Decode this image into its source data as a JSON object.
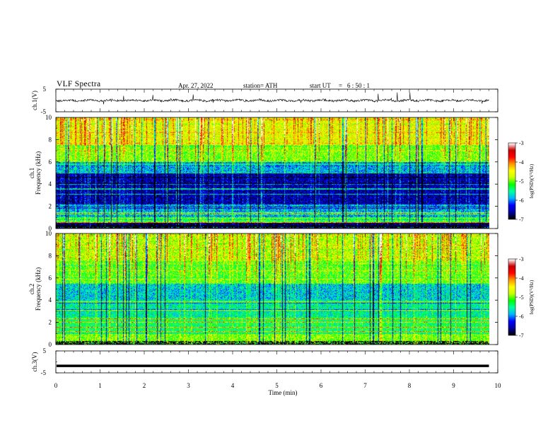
{
  "header": {
    "title": "VLF  Spectra",
    "date": "Apr. 27, 2022",
    "station": "station= ATH",
    "start_ut_label": "start  UT",
    "start_ut_equals": "=",
    "start_ut_value": "6  : 50 : 1"
  },
  "chart_data": [
    {
      "type": "line",
      "name": "ch1-waveform",
      "ylabel": "ch.1(V)",
      "ylim": [
        -5,
        5
      ],
      "yticklabels": [
        "5",
        "-5"
      ],
      "x_range": [
        0,
        10
      ],
      "x_data_extent": [
        0,
        9.8
      ],
      "baseline": 0,
      "trace": "noisy voltage trace around 0 V with frequent spikes"
    },
    {
      "type": "heatmap",
      "name": "ch1-spectrogram",
      "ylabel": "ch.1\nFrequency  (kHz)",
      "ylim": [
        0,
        10
      ],
      "yticks": [
        "0",
        "2",
        "4",
        "6",
        "8",
        "10"
      ],
      "x_range": [
        0,
        10
      ],
      "x_data_extent": [
        0,
        9.8
      ],
      "colorbar": {
        "label": "log(PSD)(V²/Hz)",
        "range": [
          -7,
          -3
        ],
        "ticks": [
          "-3",
          "-4",
          "-5",
          "-6",
          "-7"
        ],
        "colormap": [
          "#000000",
          "#0000a0",
          "#0000ff",
          "#00b4ff",
          "#00ffa0",
          "#00ff00",
          "#c8ff00",
          "#ffff00",
          "#ff9600",
          "#ff0000",
          "#c80000",
          "#ffffff"
        ]
      },
      "bands_log_psd": [
        {
          "from_khz": 0,
          "to_khz": 0.5,
          "level": -6.8
        },
        {
          "from_khz": 0.5,
          "to_khz": 1.0,
          "level": -5.2
        },
        {
          "from_khz": 1.0,
          "to_khz": 2.2,
          "level": -5.9
        },
        {
          "from_khz": 2.2,
          "to_khz": 5.0,
          "level": -6.6
        },
        {
          "from_khz": 5.0,
          "to_khz": 6.0,
          "level": -5.9
        },
        {
          "from_khz": 6.0,
          "to_khz": 7.5,
          "level": -5.0
        },
        {
          "from_khz": 7.5,
          "to_khz": 10,
          "level": -4.6
        }
      ]
    },
    {
      "type": "heatmap",
      "name": "ch2-spectrogram",
      "ylabel": "ch.2\nFrequency  (kHz)",
      "ylim": [
        0,
        10
      ],
      "yticks": [
        "0",
        "2",
        "4",
        "6",
        "8",
        "10"
      ],
      "x_range": [
        0,
        10
      ],
      "x_data_extent": [
        0,
        9.8
      ],
      "colorbar": {
        "label": "log(PSD)(V²/Hz)",
        "range": [
          -7,
          -3
        ],
        "ticks": [
          "-3",
          "-4",
          "-5",
          "-6",
          "-7"
        ],
        "colormap": [
          "#000000",
          "#0000a0",
          "#0000ff",
          "#00b4ff",
          "#00ffa0",
          "#00ff00",
          "#c8ff00",
          "#ffff00",
          "#ff9600",
          "#ff0000",
          "#c80000",
          "#ffffff"
        ]
      },
      "bands_log_psd": [
        {
          "from_khz": 0,
          "to_khz": 1.0,
          "level": -5.0
        },
        {
          "from_khz": 1.0,
          "to_khz": 2.5,
          "level": -5.4
        },
        {
          "from_khz": 2.5,
          "to_khz": 4.0,
          "level": -5.6
        },
        {
          "from_khz": 4.0,
          "to_khz": 5.5,
          "level": -5.8
        },
        {
          "from_khz": 5.5,
          "to_khz": 7.5,
          "level": -5.1
        },
        {
          "from_khz": 7.5,
          "to_khz": 10,
          "level": -4.8
        }
      ]
    },
    {
      "type": "line",
      "name": "ch3-waveform",
      "ylabel": "ch.3(V)",
      "ylim": [
        -5,
        5
      ],
      "yticklabels": [
        "5",
        "-5"
      ],
      "x_range": [
        0,
        10
      ],
      "x_data_extent": [
        0,
        9.8
      ],
      "baseline": -1.8,
      "trace": "flat thick line near -1.8 V"
    }
  ],
  "xaxis": {
    "label": "Time  (min)",
    "ticks": [
      "0",
      "1",
      "2",
      "3",
      "4",
      "5",
      "6",
      "7",
      "8",
      "9",
      "10"
    ]
  }
}
